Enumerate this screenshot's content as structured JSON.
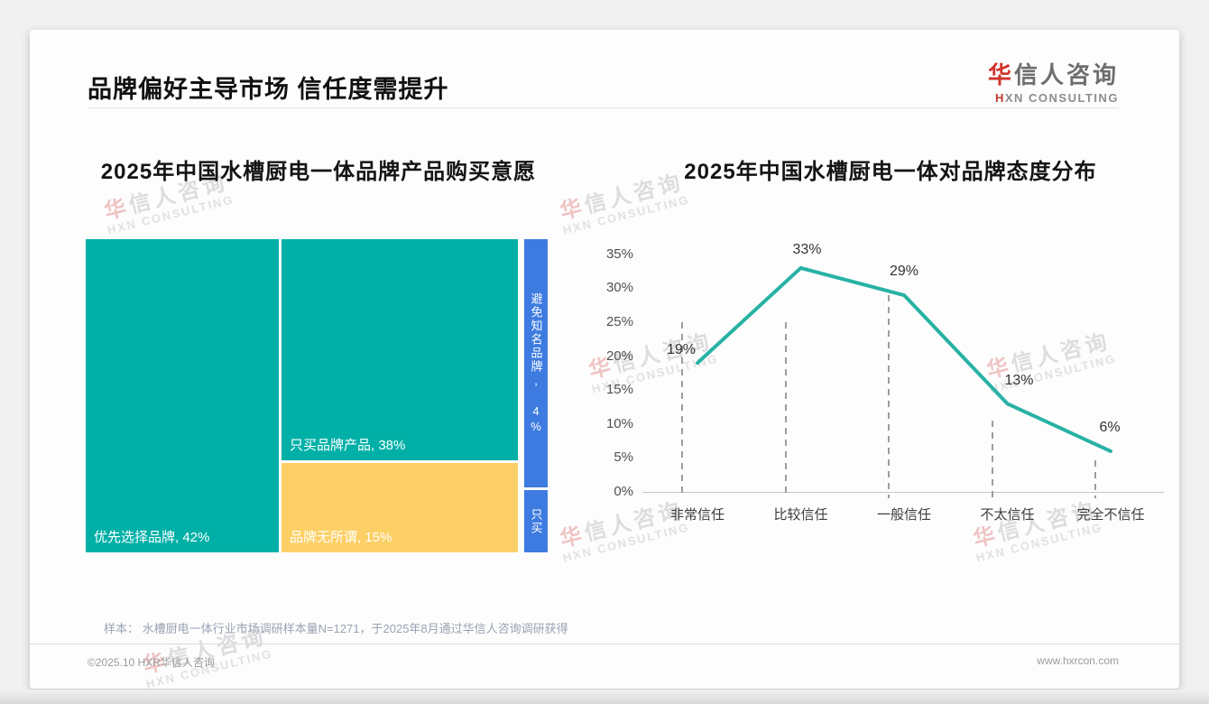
{
  "slide": {
    "title": "品牌偏好主导市场 信任度需提升",
    "logo": {
      "cn_accent": "华",
      "cn_rest": "信人咨询",
      "en_accent": "H",
      "en_rest": "XN CONSULTING"
    },
    "watermark": {
      "cn_accent": "华",
      "cn_rest": "信人咨询",
      "en": "HXN CONSULTING"
    },
    "footer_note": "样本： 水槽厨电一体行业市场调研样本量N=1271，于2025年8月通过华信人咨询调研获得",
    "footer_left": "©2025.10 HXR华信人咨询",
    "footer_right": "www.hxrcon.com"
  },
  "colors": {
    "teal": "#00b0a7",
    "yellow": "#fcd066",
    "blue": "#3d7be0",
    "line": "#27b2a4",
    "axis": "#c6c6c6",
    "dropline": "#9d9d9d"
  },
  "chart_data": [
    {
      "type": "treemap",
      "title": "2025年中国水槽厨电一体品牌产品购买意愿",
      "cells": [
        {
          "name": "优先选择品牌",
          "value": 42,
          "display": "优先选择品牌, 42%",
          "color_key": "teal",
          "orientation": "horizontal"
        },
        {
          "name": "只买品牌产品",
          "value": 38,
          "display": "只买品牌产品, 38%",
          "color_key": "teal",
          "orientation": "horizontal"
        },
        {
          "name": "品牌无所谓",
          "value": 15,
          "display": "品牌无所谓, 15%",
          "color_key": "yellow",
          "orientation": "horizontal"
        },
        {
          "name": "避免知名品牌",
          "value": 4,
          "display": "避免知名品牌, 4%",
          "color_key": "blue",
          "orientation": "vertical"
        },
        {
          "name": "只买(标签被截断)",
          "display": "只买",
          "color_key": "blue",
          "orientation": "vertical"
        }
      ]
    },
    {
      "type": "line",
      "title": "2025年中国水槽厨电一体对品牌态度分布",
      "categories": [
        "非常信任",
        "比较信任",
        "一般信任",
        "不太信任",
        "完全不信任"
      ],
      "values": [
        19,
        33,
        29,
        13,
        6
      ],
      "point_labels": [
        "19%",
        "33%",
        "29%",
        "13%",
        "6%"
      ],
      "ylim": [
        0,
        35
      ],
      "ytick_step": 5,
      "yticks": [
        "0%",
        "5%",
        "10%",
        "15%",
        "20%",
        "25%",
        "30%",
        "35%"
      ],
      "grid": "vertical dashed drop lines per category",
      "legend": "none"
    }
  ]
}
